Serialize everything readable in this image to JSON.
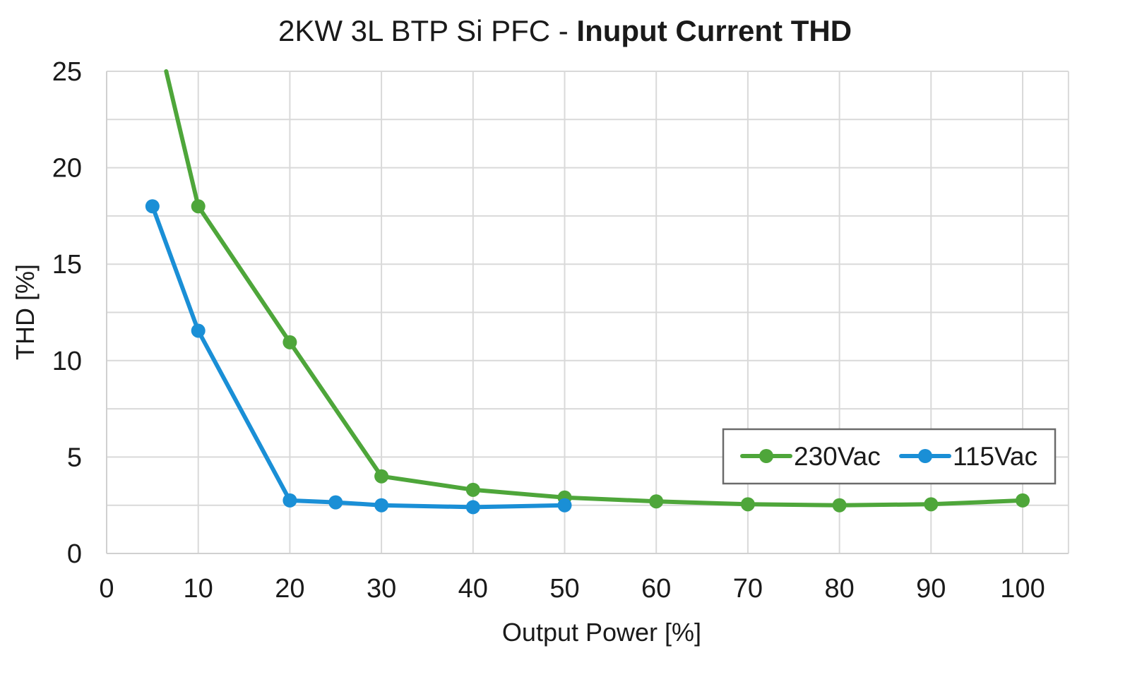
{
  "chart_data": {
    "type": "line",
    "title": "2KW 3L BTP Si PFC - ",
    "subtitle": "Inuput Current THD",
    "xlabel": "Output Power [%]",
    "ylabel": "THD [%]",
    "xlim": [
      0,
      105
    ],
    "ylim": [
      0,
      25
    ],
    "x_ticks": [
      0,
      10,
      20,
      30,
      40,
      50,
      60,
      70,
      80,
      90,
      100
    ],
    "y_ticks": [
      0,
      5,
      10,
      15,
      20,
      25
    ],
    "x_tick_labels": [
      "0",
      "10",
      "20",
      "30",
      "40",
      "50",
      "60",
      "70",
      "80",
      "90",
      "100"
    ],
    "y_tick_labels": [
      "0",
      "5",
      "10",
      "15",
      "20",
      "25"
    ],
    "grid": true,
    "legend_position": "bottom-right",
    "series": [
      {
        "name": "230Vac",
        "color": "#4ea63a",
        "x": [
          6.5,
          10,
          20,
          30,
          40,
          50,
          60,
          70,
          80,
          90,
          100
        ],
        "y": [
          25,
          18.0,
          10.95,
          4.0,
          3.3,
          2.9,
          2.7,
          2.55,
          2.5,
          2.55,
          2.75
        ],
        "markers": [
          false,
          true,
          true,
          true,
          true,
          true,
          true,
          true,
          true,
          true,
          true
        ]
      },
      {
        "name": "115Vac",
        "color": "#1a8fd6",
        "x": [
          5,
          10,
          20,
          25,
          30,
          40,
          50
        ],
        "y": [
          18.0,
          11.55,
          2.75,
          2.65,
          2.5,
          2.4,
          2.5
        ],
        "markers": [
          true,
          true,
          true,
          true,
          true,
          true,
          true
        ]
      }
    ]
  }
}
